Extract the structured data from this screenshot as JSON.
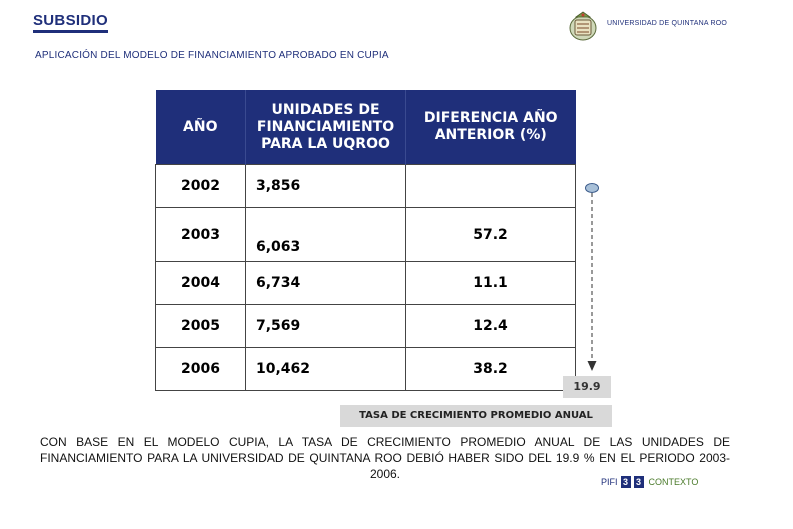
{
  "header": {
    "title": "SUBSIDIO",
    "subtitle": "APLICACIÓN DEL MODELO DE FINANCIAMIENTO APROBADO EN CUPIA",
    "university": "UNIVERSIDAD DE QUINTANA ROO"
  },
  "table": {
    "headers": {
      "year": "AÑO",
      "units": "UNIDADES DE FINANCIAMIENTO PARA LA UQROO",
      "diff": "DIFERENCIA AÑO ANTERIOR (%)"
    },
    "rows": [
      {
        "year": "2002",
        "units": "3,856",
        "diff": ""
      },
      {
        "year": "2003",
        "units": "6,063",
        "diff": "57.2"
      },
      {
        "year": "2004",
        "units": "6,734",
        "diff": "11.1"
      },
      {
        "year": "2005",
        "units": "7,569",
        "diff": "12.4"
      },
      {
        "year": "2006",
        "units": "10,462",
        "diff": "38.2"
      }
    ]
  },
  "average": {
    "value": "19.9",
    "label": "TASA DE CRECIMIENTO PROMEDIO ANUAL"
  },
  "conclusion": "CON BASE EN EL MODELO CUPIA, LA TASA DE CRECIMIENTO PROMEDIO ANUAL DE LAS UNIDADES DE FINANCIAMIENTO PARA LA UNIVERSIDAD DE QUINTANA ROO DEBIÓ HABER SIDO DEL 19.9 % EN EL PERIODO 2003-2006.",
  "footer": {
    "pifi": "PIFI",
    "num1": "3",
    "num2": "3",
    "contexto": "CONTEXTO"
  },
  "colors": {
    "primary": "#1f2f7a",
    "highlight": "#d9d9d9",
    "footer_accent": "#4a7a2a"
  }
}
